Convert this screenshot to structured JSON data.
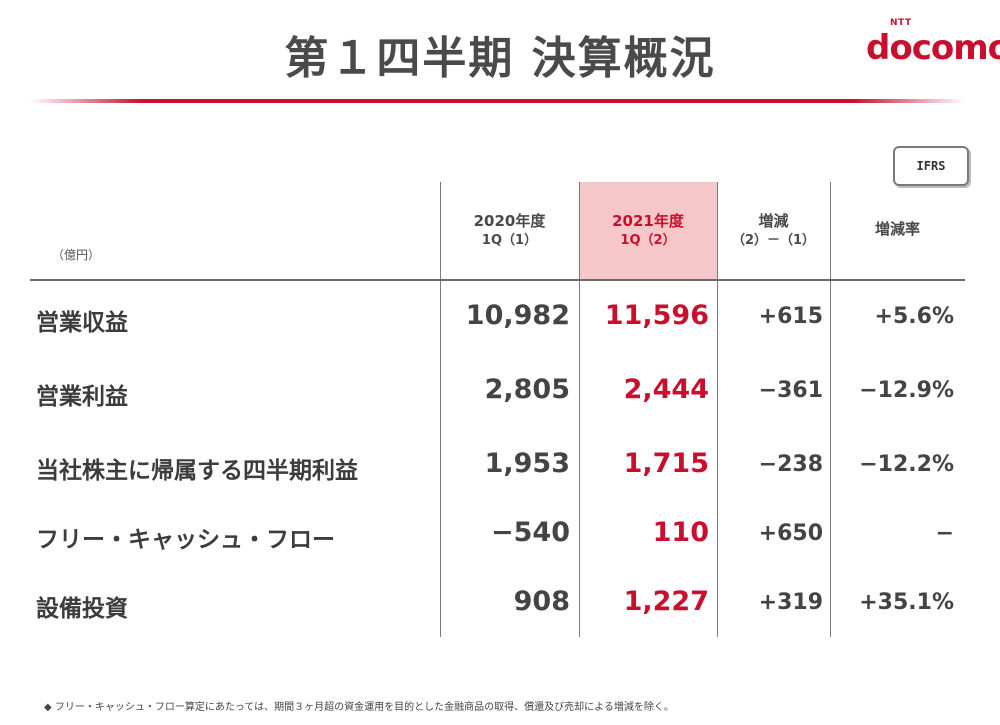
{
  "slide": {
    "title": "第１四半期 決算概況"
  },
  "brand": {
    "prefix": "NTT",
    "name": "docomo",
    "color": "#c8102e"
  },
  "badge": {
    "label": "IFRS"
  },
  "table": {
    "unit": "（億円）",
    "headers": [
      {
        "line1": "2020年度",
        "line2": "1Q（1）"
      },
      {
        "line1": "2021年度",
        "line2": "1Q（2）"
      },
      {
        "line1": "増減",
        "line2": "（2）－（1）"
      },
      {
        "line1": "増減率",
        "line2": ""
      }
    ],
    "highlight_color": "#f6c7c9",
    "rows": [
      {
        "label": "営業収益",
        "values": [
          "10,982",
          "11,596",
          "+615",
          "+5.6%"
        ]
      },
      {
        "label": "営業利益",
        "values": [
          "2,805",
          "2,444",
          "−361",
          "−12.9%"
        ]
      },
      {
        "label": "当社株主に帰属する四半期利益",
        "values": [
          "1,953",
          "1,715",
          "−238",
          "−12.2%"
        ]
      },
      {
        "label": "フリー・キャッシュ・フロー",
        "values": [
          "−540",
          "110",
          "+650",
          "−"
        ]
      },
      {
        "label": "設備投資",
        "values": [
          "908",
          "1,227",
          "+319",
          "+35.1%"
        ]
      }
    ]
  },
  "footnote": "◆ フリー・キャッシュ・フロー算定にあたっては、期間３ヶ月超の資金運用を目的とした金融商品の取得、償還及び売却による増減を除く。"
}
